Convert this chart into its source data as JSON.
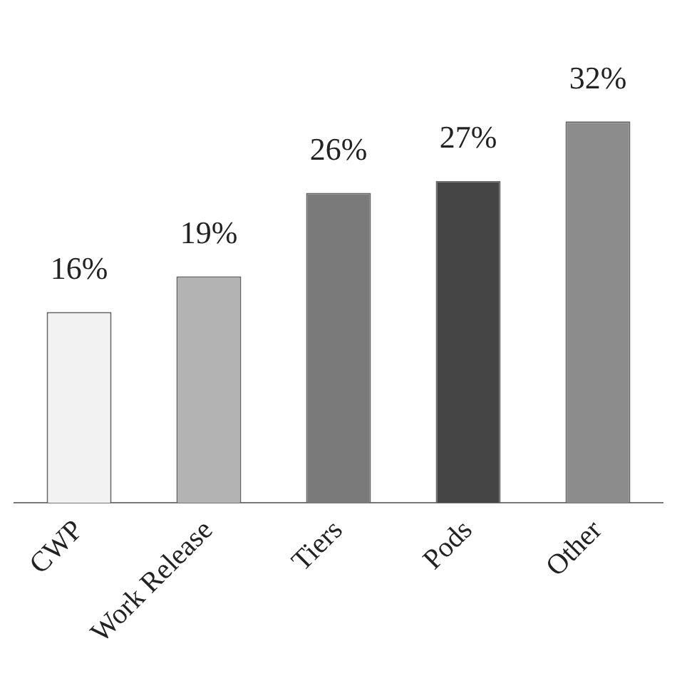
{
  "chart_data": {
    "type": "bar",
    "categories": [
      "CWP",
      "Work Release",
      "Tiers",
      "Pods",
      "Other"
    ],
    "values": [
      16,
      19,
      26,
      27,
      32
    ],
    "colors": [
      "#f2f2f2",
      "#b3b3b3",
      "#7a7a7a",
      "#454545",
      "#8c8c8c"
    ],
    "value_labels": [
      "16%",
      "19%",
      "26%",
      "27%",
      "32%"
    ],
    "tick_labels": "x",
    "grid": false,
    "legend": false
  }
}
